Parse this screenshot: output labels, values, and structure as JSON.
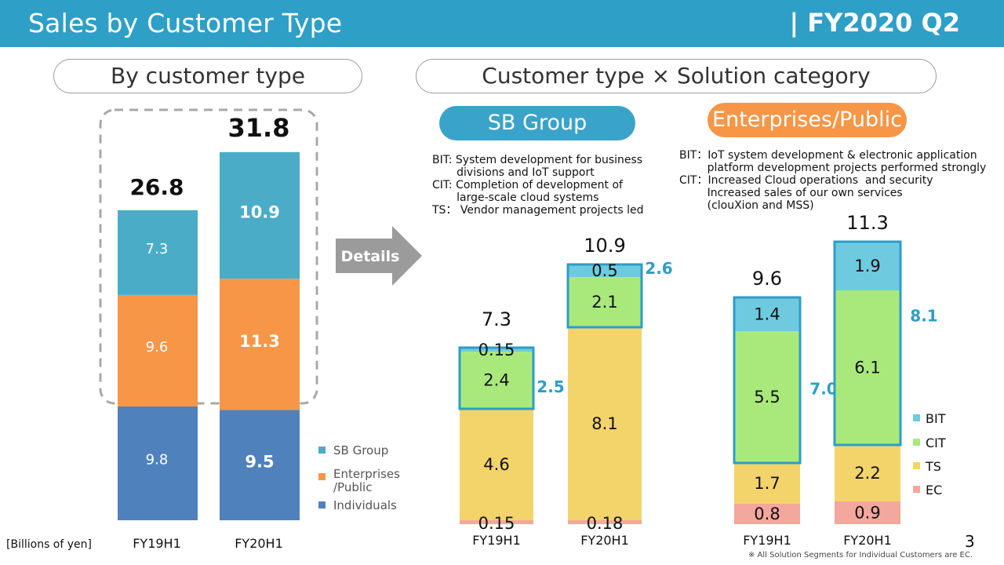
{
  "header": {
    "title": "Sales by Customer Type",
    "period": "| FY2020 Q2"
  },
  "panels": {
    "left_title": "By customer type",
    "right_title": "Customer type × Solution category"
  },
  "tags": {
    "sb": "SB Group",
    "ep": "Enterprises/Public"
  },
  "arrow_label": "Details",
  "notes": {
    "sb": "BIT: System development for business\n       divisions and IoT support\nCIT: Completion of development of\n       large-scale cloud systems\nTS： Vendor management projects led",
    "ep": "BIT：IoT system development & electronic application\n        platform development projects performed strongly\nCIT：Increased Cloud operations  and security\n        Increased sales of our own services\n        (clouXion and MSS)"
  },
  "unit": "[Billions of yen]",
  "page_number": "3",
  "footnote": "※ All Solution Segments for Individual Customers are EC.",
  "colors": {
    "header": "#2e9fc7",
    "sb_group": "#4aacc7",
    "enterprises": "#f79646",
    "individuals": "#4f81bd",
    "bit": "#6ecbdf",
    "cit": "#a9e97c",
    "ts": "#f3d46a",
    "ec": "#f4a79c",
    "outline": "#2c9ec7",
    "orange_tag": "#f79646"
  },
  "chart_data": [
    {
      "type": "bar",
      "stacked": true,
      "categories": [
        "FY19H1",
        "FY20H1"
      ],
      "series": [
        {
          "name": "Individuals",
          "values": [
            9.8,
            9.5
          ]
        },
        {
          "name": "Enterprises /Public",
          "values": [
            9.6,
            11.3
          ]
        },
        {
          "name": "SB Group",
          "values": [
            7.3,
            10.9
          ]
        }
      ],
      "totals": [
        "26.8",
        "31.8"
      ],
      "labels": [
        [
          "9.8",
          "9.5"
        ],
        [
          "9.6",
          "11.3"
        ],
        [
          "7.3",
          "10.9"
        ]
      ],
      "legend": [
        "SB Group",
        "Enterprises /Public",
        "Individuals"
      ]
    },
    {
      "type": "bar",
      "stacked": true,
      "categories": [
        "FY19H1",
        "FY20H1"
      ],
      "series": [
        {
          "name": "EC",
          "values": [
            0.15,
            0.18
          ]
        },
        {
          "name": "TS",
          "values": [
            4.6,
            8.1
          ]
        },
        {
          "name": "CIT",
          "values": [
            2.4,
            2.1
          ]
        },
        {
          "name": "BIT",
          "values": [
            0.15,
            0.5
          ]
        }
      ],
      "totals": [
        "7.3",
        "10.9"
      ],
      "labels": [
        [
          "0.15",
          "0.18"
        ],
        [
          "4.6",
          "8.1"
        ],
        [
          "2.4",
          "2.1"
        ],
        [
          "0.15",
          "0.5"
        ]
      ],
      "bracket_totals": [
        "2.5",
        "2.6"
      ]
    },
    {
      "type": "bar",
      "stacked": true,
      "categories": [
        "FY19H1",
        "FY20H1"
      ],
      "series": [
        {
          "name": "EC",
          "values": [
            0.8,
            0.9
          ]
        },
        {
          "name": "TS",
          "values": [
            1.7,
            2.2
          ]
        },
        {
          "name": "CIT",
          "values": [
            5.5,
            6.1
          ]
        },
        {
          "name": "BIT",
          "values": [
            1.4,
            1.9
          ]
        }
      ],
      "totals": [
        "9.6",
        "11.3"
      ],
      "labels": [
        [
          "0.8",
          "0.9"
        ],
        [
          "1.7",
          "2.2"
        ],
        [
          "5.5",
          "6.1"
        ],
        [
          "1.4",
          "1.9"
        ]
      ],
      "bracket_totals": [
        "7.0",
        "8.1"
      ],
      "legend": [
        "BIT",
        "CIT",
        "TS",
        "EC"
      ]
    }
  ]
}
